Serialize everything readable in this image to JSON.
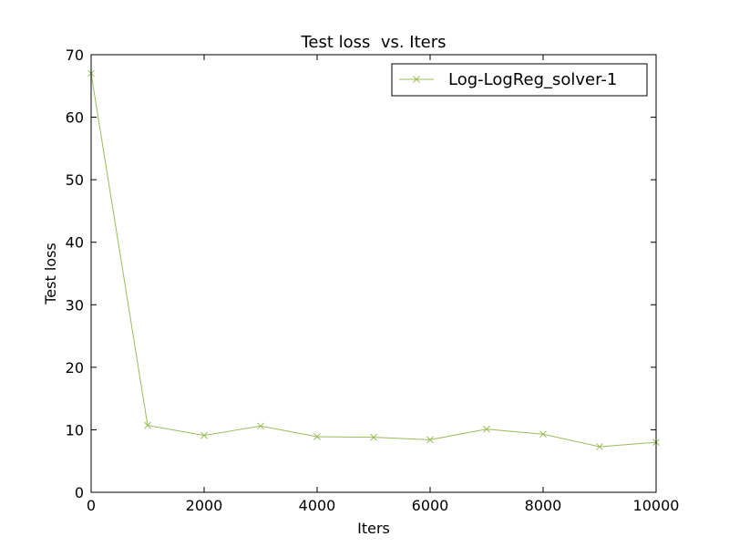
{
  "chart_data": {
    "type": "line",
    "title": "Test loss  vs. Iters",
    "xlabel": "Iters",
    "ylabel": "Test loss",
    "xlim": [
      0,
      10000
    ],
    "ylim": [
      0,
      70
    ],
    "xticks": [
      0,
      2000,
      4000,
      6000,
      8000,
      10000
    ],
    "yticks": [
      0,
      10,
      20,
      30,
      40,
      50,
      60,
      70
    ],
    "grid": false,
    "legend_position": "top-right",
    "series": [
      {
        "name": "Log-LogReg_solver-1",
        "color": "#9bbb59",
        "marker": "x",
        "x": [
          0,
          1000,
          2000,
          3000,
          4000,
          5000,
          6000,
          7000,
          8000,
          9000,
          10000
        ],
        "y": [
          67.0,
          10.7,
          9.1,
          10.6,
          8.9,
          8.8,
          8.4,
          10.1,
          9.3,
          7.3,
          8.0
        ]
      }
    ]
  }
}
